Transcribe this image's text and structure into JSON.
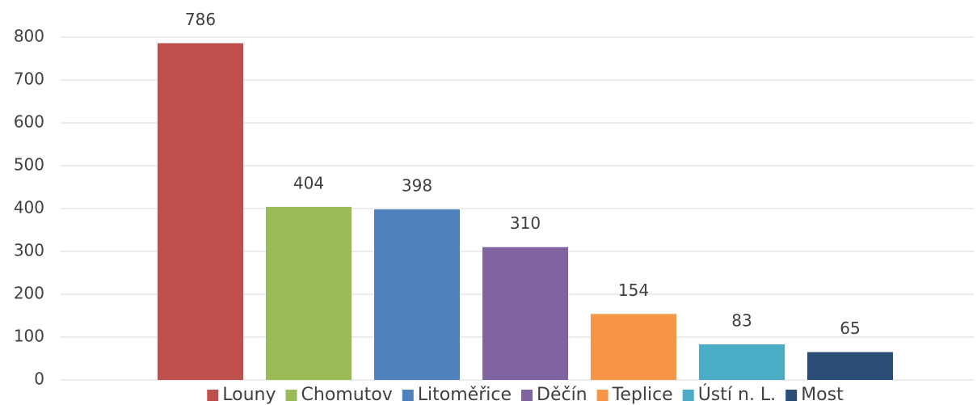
{
  "chart_data": {
    "type": "bar",
    "series": [
      {
        "name": "Louny",
        "color": "#c0504d",
        "values": [
          786
        ]
      },
      {
        "name": "Chomutov",
        "color": "#9bbb59",
        "values": [
          404
        ]
      },
      {
        "name": "Litoměřice",
        "color": "#4f81bd",
        "values": [
          398
        ]
      },
      {
        "name": "Děčín",
        "color": "#8064a2",
        "values": [
          310
        ]
      },
      {
        "name": "Teplice",
        "color": "#f79646",
        "values": [
          154
        ]
      },
      {
        "name": "Ústí n. L.",
        "color": "#4bacc6",
        "values": [
          83
        ]
      },
      {
        "name": "Most",
        "color": "#2c4d75",
        "values": [
          65
        ]
      }
    ],
    "ylim": [
      0,
      800
    ],
    "yticks": [
      0,
      100,
      200,
      300,
      400,
      500,
      600,
      700,
      800
    ],
    "grid": true,
    "legend": "bottom"
  }
}
